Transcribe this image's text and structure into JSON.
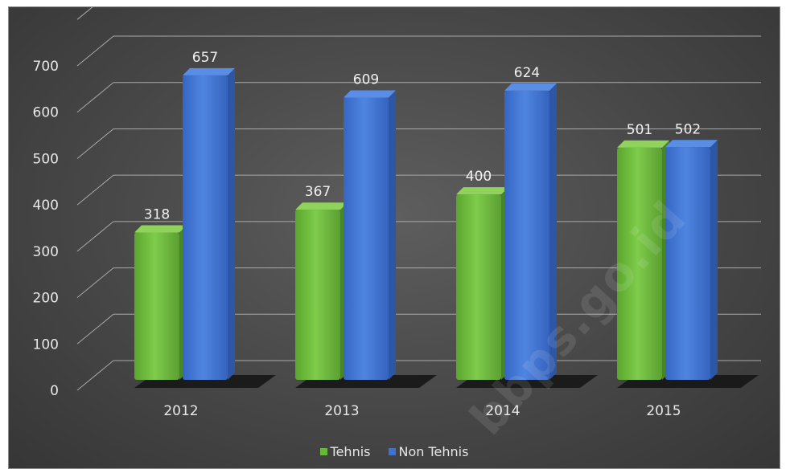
{
  "chart_data": {
    "type": "bar",
    "title": "",
    "xlabel": "",
    "ylabel": "",
    "categories": [
      "2012",
      "2013",
      "2014",
      "2015"
    ],
    "series": [
      {
        "name": "Tehnis",
        "values": [
          318,
          367,
          400,
          501
        ],
        "color": "#6ab83a"
      },
      {
        "name": "Non Tehnis",
        "values": [
          657,
          609,
          624,
          502
        ],
        "color": "#3f72cf"
      }
    ],
    "ylim": [
      0,
      800
    ],
    "y_ticks": [
      "0",
      "100",
      "200",
      "300",
      "400",
      "500",
      "600",
      "700"
    ],
    "grid": true,
    "legend_position": "bottom",
    "style": "3d-column"
  },
  "watermark": "bbps.go.id"
}
